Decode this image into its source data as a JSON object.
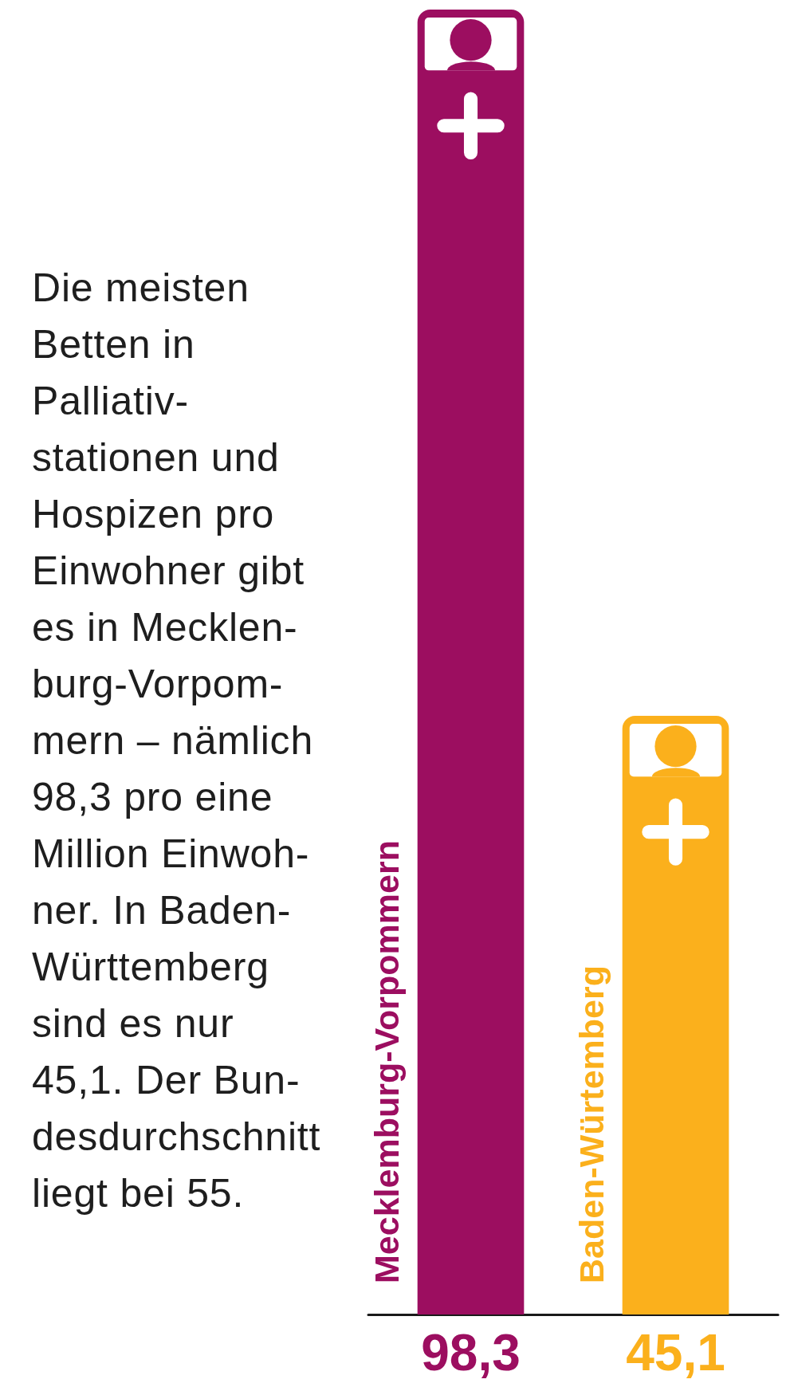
{
  "chart_data": {
    "type": "bar",
    "categories": [
      "Mecklemburg-Vorpommern",
      "Baden-Würtemberg"
    ],
    "values": [
      98.3,
      45.1
    ],
    "colors": [
      "#9c0e60",
      "#fbb01c"
    ],
    "value_labels": [
      "98,3",
      "45,1"
    ],
    "tick_labels": "x",
    "annotations": [
      "Die meisten\nBetten in\nPalliativ-\nstationen und\nHospizen pro\nEinwohner gibt\nes in Mecklen-\nburg-Vorpom-\nmern – nämlich\n98,3 pro eine\nMillion Einwoh-\nner. In Baden-\nWürttemberg\nsind es nur\n45,1. Der Bun-\ndesdurchschnitt\nliegt bei 55."
    ]
  }
}
